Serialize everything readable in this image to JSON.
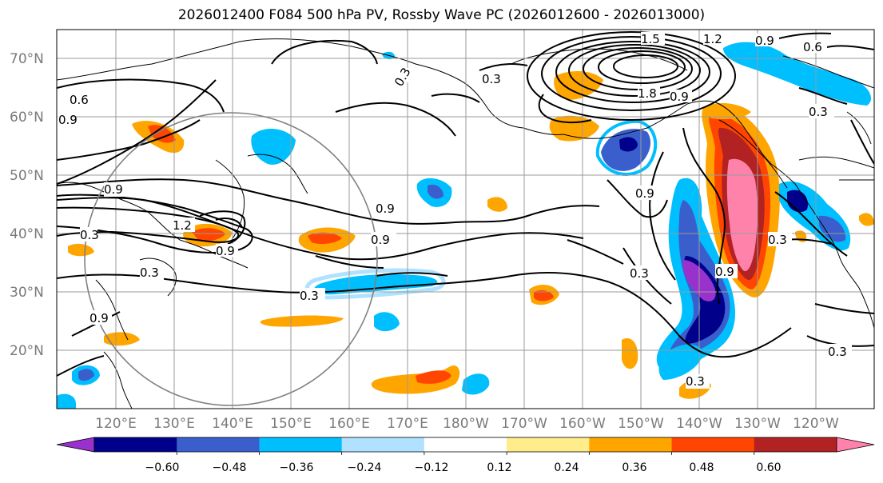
{
  "title": "2026012400 F084 500 hPa PV, Rossby Wave PC (2026012600 - 2026013000)",
  "lat_labels": [
    "70°N",
    "60°N",
    "50°N",
    "40°N",
    "30°N",
    "20°N"
  ],
  "lon_labels": [
    "120°E",
    "130°E",
    "140°E",
    "150°E",
    "160°E",
    "170°E",
    "180°W",
    "170°W",
    "160°W",
    "150°W",
    "140°W",
    "130°W",
    "120°W"
  ],
  "contour_labels": [
    "0.6",
    "0.9",
    "0.3",
    "0.3",
    "1.5",
    "1.2",
    "0.9",
    "0.6",
    "0.9",
    "0.9",
    "0.9",
    "0.3",
    "0.3",
    "0.9",
    "0.9",
    "1.2",
    "0.3",
    "0.3",
    "0.9",
    "0.3",
    "0.3",
    "0.9",
    "0.3",
    "0.3",
    "0.9",
    "1.8"
  ],
  "colorbar": {
    "colors": [
      "#9932cc",
      "#00008b",
      "#3a5fcd",
      "#00bfff",
      "#b0e2ff",
      "#ffffff",
      "#ffec8b",
      "#ffa500",
      "#ff4500",
      "#b22222",
      "#ff82ab"
    ],
    "tick_labels": [
      "−0.60",
      "−0.48",
      "−0.36",
      "−0.24",
      "−0.12",
      "0.12",
      "0.24",
      "0.36",
      "0.48",
      "0.60"
    ]
  },
  "colors": {
    "grid": "#9a9a9a",
    "coast": "#000000",
    "contour": "#000000",
    "circle": "#808080"
  }
}
